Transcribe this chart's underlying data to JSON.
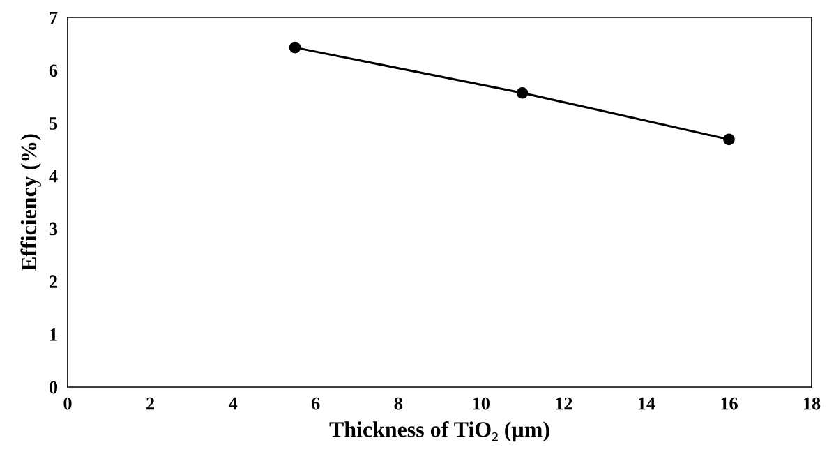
{
  "chart_data": {
    "type": "line",
    "xlabel": "Thickness of TiO₂ (µm)",
    "ylabel": "Efficiency (%)",
    "x": [
      5.5,
      11,
      16
    ],
    "series": [
      {
        "color": "#000000",
        "values": [
          6.43,
          5.57,
          4.69
        ]
      }
    ],
    "xlim": [
      0,
      18
    ],
    "xticks": [
      0,
      2,
      4,
      6,
      8,
      10,
      12,
      14,
      16,
      18
    ],
    "ylim": [
      0,
      7
    ],
    "yticks": [
      0,
      1,
      2,
      3,
      4,
      5,
      6,
      7
    ],
    "marker": "circle",
    "line_style": "solid",
    "grid": false,
    "legend": false
  }
}
